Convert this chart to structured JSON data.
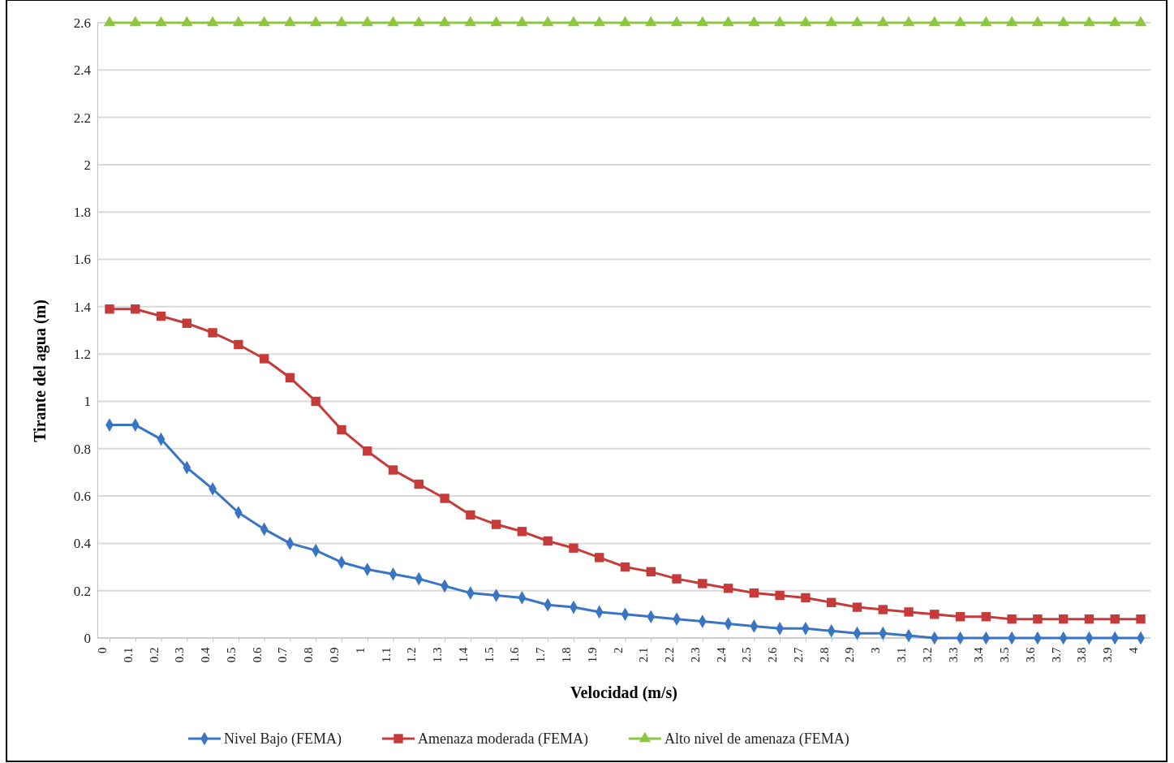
{
  "chart_data": {
    "type": "line",
    "xlabel": "Velocidad  (m/s)",
    "ylabel": "Tirante del agua (m)",
    "categories": [
      "0",
      "0.1",
      "0.2",
      "0.3",
      "0.4",
      "0.5",
      "0.6",
      "0.7",
      "0.8",
      "0.9",
      "1",
      "1.1",
      "1.2",
      "1.3",
      "1.4",
      "1.5",
      "1.6",
      "1.7",
      "1.8",
      "1.9",
      "2",
      "2.1",
      "2.2",
      "2.3",
      "2.4",
      "2.5",
      "2.6",
      "2.7",
      "2.8",
      "2.9",
      "3",
      "3.1",
      "3.2",
      "3.3",
      "3.4",
      "3.5",
      "3.6",
      "3.7",
      "3.8",
      "3.9",
      "4"
    ],
    "series": [
      {
        "name": "Nivel Bajo (FEMA)",
        "color": "#3a75c4",
        "marker": "diamond",
        "values": [
          0.9,
          0.9,
          0.84,
          0.72,
          0.63,
          0.53,
          0.46,
          0.4,
          0.37,
          0.32,
          0.29,
          0.27,
          0.25,
          0.22,
          0.19,
          0.18,
          0.17,
          0.14,
          0.13,
          0.11,
          0.1,
          0.09,
          0.08,
          0.07,
          0.06,
          0.05,
          0.04,
          0.04,
          0.03,
          0.02,
          0.02,
          0.01,
          0,
          0,
          0,
          0,
          0,
          0,
          0,
          0,
          0
        ]
      },
      {
        "name": "Amenaza moderada (FEMA)",
        "color": "#c63a3a",
        "marker": "square",
        "values": [
          1.39,
          1.39,
          1.36,
          1.33,
          1.29,
          1.24,
          1.18,
          1.1,
          1.0,
          0.88,
          0.79,
          0.71,
          0.65,
          0.59,
          0.52,
          0.48,
          0.45,
          0.41,
          0.38,
          0.34,
          0.3,
          0.28,
          0.25,
          0.23,
          0.21,
          0.19,
          0.18,
          0.17,
          0.15,
          0.13,
          0.12,
          0.11,
          0.1,
          0.09,
          0.09,
          0.08,
          0.08,
          0.08,
          0.08,
          0.08,
          0.08
        ]
      },
      {
        "name": "Alto nivel de amenaza (FEMA)",
        "color": "#8dc63f",
        "marker": "triangle",
        "values": [
          2.6,
          2.6,
          2.6,
          2.6,
          2.6,
          2.6,
          2.6,
          2.6,
          2.6,
          2.6,
          2.6,
          2.6,
          2.6,
          2.6,
          2.6,
          2.6,
          2.6,
          2.6,
          2.6,
          2.6,
          2.6,
          2.6,
          2.6,
          2.6,
          2.6,
          2.6,
          2.6,
          2.6,
          2.6,
          2.6,
          2.6,
          2.6,
          2.6,
          2.6,
          2.6,
          2.6,
          2.6,
          2.6,
          2.6,
          2.6,
          2.6
        ]
      }
    ],
    "ylim": [
      0,
      2.6
    ],
    "yticks": [
      0,
      0.2,
      0.4,
      0.6,
      0.8,
      1,
      1.2,
      1.4,
      1.6,
      1.8,
      2,
      2.2,
      2.4,
      2.6
    ],
    "grid": "y",
    "legend": "bottom",
    "line_style": "solid"
  }
}
